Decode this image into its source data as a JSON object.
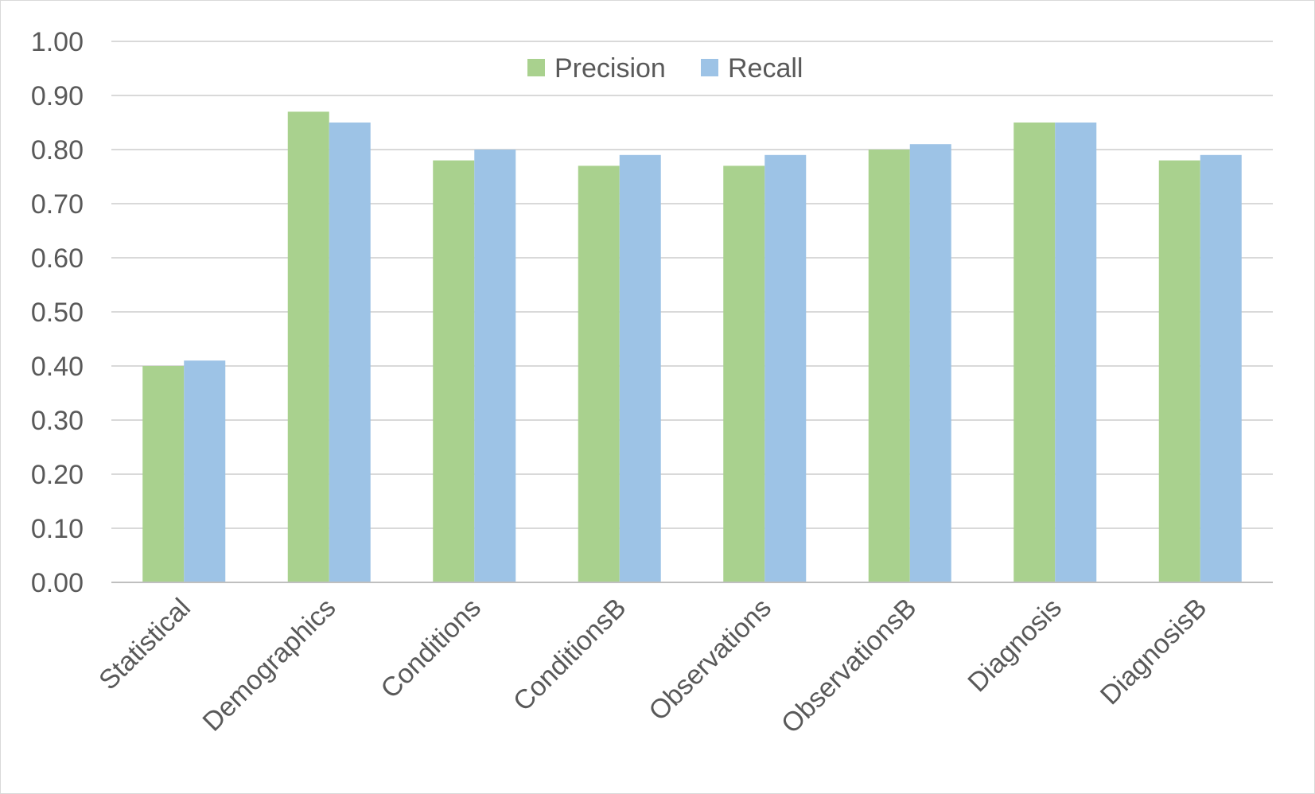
{
  "chart_data": {
    "type": "bar",
    "title": "",
    "xlabel": "",
    "ylabel": "",
    "ylim": [
      0,
      1
    ],
    "ytick_step": 0.1,
    "ytick_labels": [
      "0.00",
      "0.10",
      "0.20",
      "0.30",
      "0.40",
      "0.50",
      "0.60",
      "0.70",
      "0.80",
      "0.90",
      "1.00"
    ],
    "grid": true,
    "legend_position": "top-center",
    "categories": [
      "Statistical",
      "Demographics",
      "Conditions",
      "ConditionsB",
      "Observations",
      "ObservationsB",
      "Diagnosis",
      "DiagnosisB"
    ],
    "series": [
      {
        "name": "Precision",
        "color": "#a9d18e",
        "values": [
          0.4,
          0.87,
          0.78,
          0.77,
          0.77,
          0.8,
          0.85,
          0.78
        ]
      },
      {
        "name": "Recall",
        "color": "#9dc3e6",
        "values": [
          0.41,
          0.85,
          0.8,
          0.79,
          0.79,
          0.81,
          0.85,
          0.79
        ]
      }
    ]
  }
}
